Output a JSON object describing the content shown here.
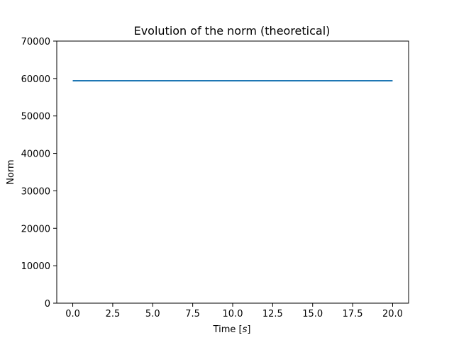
{
  "chart_data": {
    "type": "line",
    "title": "Evolution of the norm (theoretical)",
    "xlabel_prefix": "Time [",
    "xlabel_unit": "s",
    "xlabel_suffix": "]",
    "ylabel": "Norm",
    "xlim": [
      -1.0,
      21.0
    ],
    "ylim": [
      0,
      70000
    ],
    "xticks": [
      0.0,
      2.5,
      5.0,
      7.5,
      10.0,
      12.5,
      15.0,
      17.5,
      20.0
    ],
    "xtick_labels": [
      "0.0",
      "2.5",
      "5.0",
      "7.5",
      "10.0",
      "12.5",
      "15.0",
      "17.5",
      "20.0"
    ],
    "yticks": [
      0,
      10000,
      20000,
      30000,
      40000,
      50000,
      60000,
      70000
    ],
    "ytick_labels": [
      "0",
      "10000",
      "20000",
      "30000",
      "40000",
      "50000",
      "60000",
      "70000"
    ],
    "grid": false,
    "series": [
      {
        "color": "#1f77b4",
        "x": [
          0,
          20
        ],
        "y": [
          59400,
          59400
        ]
      }
    ]
  }
}
